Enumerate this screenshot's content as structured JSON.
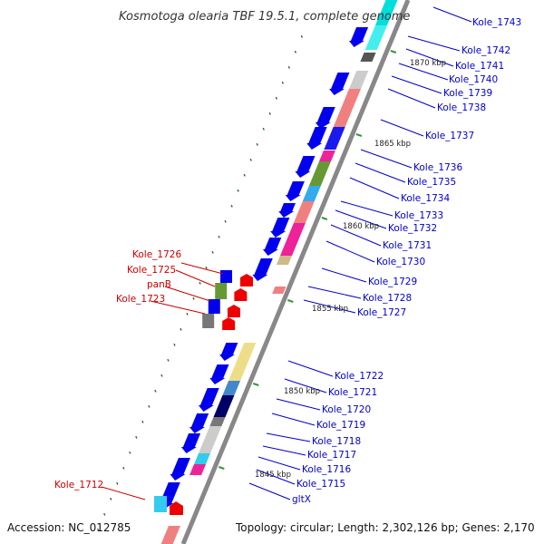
{
  "title": "Kosmotoga olearia TBF 19.5.1, complete genome",
  "accession": "Accession: NC_012785",
  "topology": "Topology: circular; Length: 2,302,126 bp; Genes: 2,170",
  "colors": {
    "backbone": "#888888",
    "blue_gene": "#0000ee",
    "red_gene": "#ee0000",
    "plus_label": "#0000cc",
    "minus_label": "#cc0000",
    "kbp_tick": "#339933",
    "gc_dots": "#226622"
  },
  "kbp_ticks": [
    "1870 kbp",
    "1865 kbp",
    "1860 kbp",
    "1855 kbp",
    "1850 kbp",
    "1845 kbp"
  ],
  "plus_labels": [
    "Kole_1743",
    "Kole_1742",
    "Kole_1741",
    "Kole_1740",
    "Kole_1739",
    "Kole_1738",
    "Kole_1737",
    "Kole_1736",
    "Kole_1735",
    "Kole_1734",
    "Kole_1733",
    "Kole_1732",
    "Kole_1731",
    "Kole_1730",
    "Kole_1729",
    "Kole_1728",
    "Kole_1727",
    "Kole_1722",
    "Kole_1721",
    "Kole_1720",
    "Kole_1719",
    "Kole_1718",
    "Kole_1717",
    "Kole_1716",
    "Kole_1715",
    "gltX"
  ],
  "minus_labels": [
    "Kole_1726",
    "Kole_1725",
    "panB",
    "Kole_1723",
    "Kole_1712"
  ]
}
